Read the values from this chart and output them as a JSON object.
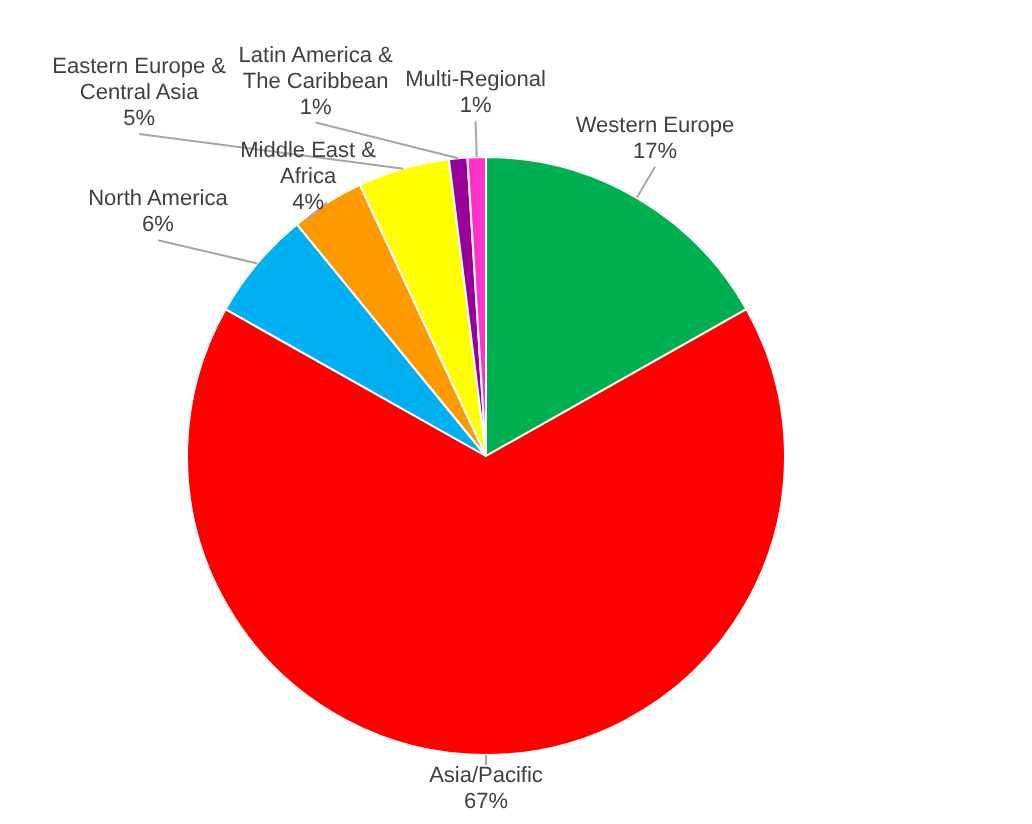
{
  "chart_data": {
    "type": "pie",
    "categories": [
      "Western Europe",
      "Asia/Pacific",
      "North America",
      "Middle East & Africa",
      "Eastern Europe & Central Asia",
      "Latin America & The Caribbean",
      "Multi-Regional"
    ],
    "values": [
      17,
      67,
      6,
      4,
      5,
      1,
      1
    ],
    "colors": [
      "#00b050",
      "#ff0000",
      "#00b0f0",
      "#ff9900",
      "#ffff00",
      "#990099",
      "#ff33cc"
    ],
    "value_labels": [
      "17%",
      "67%",
      "6%",
      "4%",
      "5%",
      "1%",
      "1%"
    ]
  }
}
